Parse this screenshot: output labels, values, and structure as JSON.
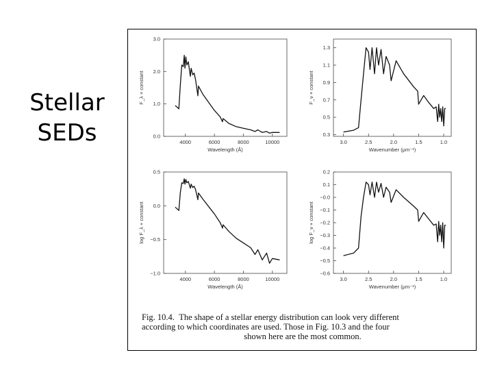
{
  "slide": {
    "title_line1": "Stellar",
    "title_line2": "SEDs"
  },
  "figure": {
    "caption_label": "Fig. 10.4.",
    "caption_line1": "The shape of a stellar energy distribution can look very different",
    "caption_line2": "according to which coordinates are used. Those in Fig. 10.3 and the four",
    "caption_line3": "shown here are the most common."
  },
  "chart_data": [
    {
      "type": "line",
      "xlabel": "Wavelength (Å)",
      "ylabel": "F_λ × constant",
      "xlim": [
        2500,
        11000
      ],
      "ylim": [
        0.0,
        3.0
      ],
      "xticks": [
        4000,
        6000,
        8000,
        10000
      ],
      "yticks": [
        0.0,
        1.0,
        2.0,
        3.0
      ],
      "ytick_labels": [
        "0.0",
        "1.0",
        "2.0",
        "3.0"
      ],
      "series": [
        {
          "x": [
            3300,
            3550,
            3650,
            3750,
            3850,
            3920,
            3970,
            4030,
            4100,
            4200,
            4340,
            4400,
            4500,
            4600,
            4700,
            4861,
            4900,
            5200,
            5600,
            6000,
            6400,
            6563,
            6600,
            7000,
            7500,
            8000,
            8500,
            8800,
            9000,
            9300,
            9600,
            9800,
            10000,
            10500
          ],
          "y": [
            0.95,
            0.85,
            1.6,
            2.2,
            2.15,
            2.5,
            2.1,
            2.45,
            2.2,
            2.3,
            1.85,
            2.1,
            1.9,
            1.95,
            1.75,
            1.25,
            1.55,
            1.3,
            1.05,
            0.8,
            0.6,
            0.45,
            0.55,
            0.4,
            0.3,
            0.25,
            0.2,
            0.15,
            0.2,
            0.12,
            0.15,
            0.1,
            0.12,
            0.12
          ]
        }
      ]
    },
    {
      "type": "line",
      "xlabel": "Wavenumber (μm⁻¹)",
      "ylabel": "F_ν × constant",
      "xlim": [
        3.2,
        0.85
      ],
      "ylim": [
        0.28,
        1.4
      ],
      "xticks": [
        3.0,
        2.5,
        2.0,
        1.5,
        1.0
      ],
      "yticks": [
        0.3,
        0.5,
        0.7,
        0.9,
        1.1,
        1.3
      ],
      "ytick_labels": [
        "0.3",
        "0.5",
        "0.7",
        "0.9",
        "1.1",
        "1.3"
      ],
      "series": [
        {
          "x": [
            3.0,
            2.8,
            2.7,
            2.65,
            2.6,
            2.55,
            2.5,
            2.47,
            2.43,
            2.38,
            2.34,
            2.3,
            2.25,
            2.2,
            2.15,
            2.08,
            2.05,
            1.95,
            1.8,
            1.6,
            1.52,
            1.5,
            1.4,
            1.3,
            1.2,
            1.15,
            1.12,
            1.1,
            1.08,
            1.06,
            1.04,
            1.02,
            1.0,
            0.98,
            0.96
          ],
          "y": [
            0.33,
            0.35,
            0.38,
            0.7,
            1.0,
            1.3,
            1.25,
            1.05,
            1.3,
            1.0,
            1.3,
            1.1,
            1.28,
            1.0,
            1.2,
            1.1,
            0.92,
            1.15,
            1.0,
            0.85,
            0.8,
            0.65,
            0.75,
            0.67,
            0.6,
            0.62,
            0.45,
            0.65,
            0.5,
            0.6,
            0.45,
            0.62,
            0.4,
            0.6,
            0.6
          ]
        }
      ]
    },
    {
      "type": "line",
      "xlabel": "Wavelength (Å)",
      "ylabel": "log F_λ + constant",
      "xlim": [
        2500,
        11000
      ],
      "ylim": [
        -1.0,
        0.5
      ],
      "xticks": [
        4000,
        6000,
        8000,
        10000
      ],
      "yticks": [
        -1.0,
        -0.5,
        0.0,
        0.5
      ],
      "ytick_labels": [
        "−1.0",
        "−0.5",
        "0.0",
        "0.5"
      ],
      "series": [
        {
          "x": [
            3300,
            3550,
            3650,
            3750,
            3850,
            3920,
            3970,
            4030,
            4100,
            4200,
            4340,
            4400,
            4500,
            4600,
            4700,
            4861,
            4900,
            5200,
            5600,
            6000,
            6400,
            6563,
            6600,
            7000,
            7500,
            8000,
            8500,
            8800,
            9000,
            9300,
            9600,
            9800,
            10000,
            10500
          ],
          "y": [
            -0.02,
            -0.07,
            0.2,
            0.34,
            0.33,
            0.4,
            0.32,
            0.39,
            0.34,
            0.36,
            0.26,
            0.32,
            0.27,
            0.29,
            0.24,
            0.09,
            0.19,
            0.1,
            -0.01,
            -0.12,
            -0.25,
            -0.33,
            -0.28,
            -0.38,
            -0.48,
            -0.55,
            -0.62,
            -0.72,
            -0.65,
            -0.8,
            -0.7,
            -0.85,
            -0.78,
            -0.8
          ]
        }
      ]
    },
    {
      "type": "line",
      "xlabel": "Wavenumber (μm⁻¹)",
      "ylabel": "log F_ν + constant",
      "xlim": [
        3.2,
        0.85
      ],
      "ylim": [
        -0.6,
        0.2
      ],
      "xticks": [
        3.0,
        2.5,
        2.0,
        1.5,
        1.0
      ],
      "yticks": [
        -0.6,
        -0.5,
        -0.4,
        -0.3,
        -0.2,
        -0.1,
        0.0,
        0.1,
        0.2
      ],
      "ytick_labels": [
        "−0.6",
        "−0.5",
        "−0.4",
        "−0.3",
        "−0.2",
        "−0.1",
        "−0.0",
        "0.1",
        "0.2"
      ],
      "series": [
        {
          "x": [
            3.0,
            2.8,
            2.7,
            2.65,
            2.6,
            2.55,
            2.5,
            2.47,
            2.43,
            2.38,
            2.34,
            2.3,
            2.25,
            2.2,
            2.15,
            2.08,
            2.05,
            1.95,
            1.8,
            1.6,
            1.52,
            1.5,
            1.4,
            1.3,
            1.2,
            1.15,
            1.12,
            1.1,
            1.08,
            1.06,
            1.04,
            1.02,
            1.0,
            0.98,
            0.96
          ],
          "y": [
            -0.46,
            -0.44,
            -0.4,
            -0.15,
            0.0,
            0.12,
            0.1,
            0.02,
            0.12,
            0.0,
            0.12,
            0.04,
            0.11,
            0.0,
            0.08,
            0.04,
            -0.04,
            0.06,
            0.0,
            -0.07,
            -0.1,
            -0.19,
            -0.12,
            -0.17,
            -0.22,
            -0.21,
            -0.35,
            -0.19,
            -0.3,
            -0.22,
            -0.35,
            -0.2,
            -0.4,
            -0.22,
            -0.22
          ]
        }
      ]
    }
  ]
}
